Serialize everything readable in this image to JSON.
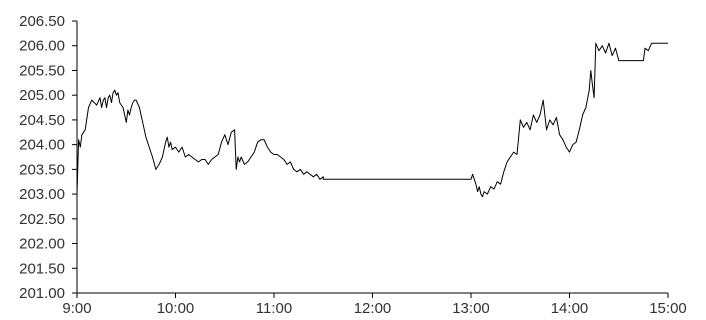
{
  "chart_data": {
    "type": "line",
    "title": "",
    "xlabel": "",
    "ylabel": "",
    "x_ticks": [
      "9:00",
      "10:00",
      "11:00",
      "12:00",
      "13:00",
      "14:00",
      "15:00"
    ],
    "y_ticks": [
      "201.00",
      "201.50",
      "202.00",
      "202.50",
      "203.00",
      "203.50",
      "204.00",
      "204.50",
      "205.00",
      "205.50",
      "206.00",
      "206.50"
    ],
    "xlim": [
      "9:00",
      "15:00"
    ],
    "ylim": [
      201.0,
      206.5
    ],
    "grid": false,
    "line_color": "#000000",
    "series": [
      {
        "x": [
          "9:00",
          "9:01",
          "9:02",
          "9:03",
          "9:05",
          "9:07",
          "9:09",
          "9:12",
          "9:14",
          "9:15",
          "9:16",
          "9:17",
          "9:18",
          "9:19",
          "9:20",
          "9:21",
          "9:22",
          "9:23",
          "9:24",
          "9:25",
          "9:26",
          "9:28",
          "9:30",
          "9:31",
          "9:32",
          "9:33",
          "9:34",
          "9:35",
          "9:36",
          "9:38",
          "9:40",
          "9:42",
          "9:44",
          "9:46",
          "9:48",
          "9:50",
          "9:52",
          "9:54",
          "9:55",
          "9:56",
          "9:57",
          "9:58",
          "10:00",
          "10:02",
          "10:04",
          "10:06",
          "10:08",
          "10:10",
          "10:12",
          "10:14",
          "10:16",
          "10:18",
          "10:20",
          "10:22",
          "10:24",
          "10:26",
          "10:28",
          "10:30",
          "10:32",
          "10:34",
          "10:36",
          "10:37",
          "10:38",
          "10:39",
          "10:40",
          "10:42",
          "10:44",
          "10:46",
          "10:48",
          "10:50",
          "10:52",
          "10:54",
          "10:56",
          "10:58",
          "11:00",
          "11:02",
          "11:04",
          "11:06",
          "11:08",
          "11:10",
          "11:12",
          "11:14",
          "11:16",
          "11:18",
          "11:20",
          "11:22",
          "11:24",
          "11:26",
          "11:28",
          "11:30",
          "11:30",
          "13:00",
          "13:01",
          "13:02",
          "13:03",
          "13:04",
          "13:05",
          "13:06",
          "13:07",
          "13:08",
          "13:10",
          "13:12",
          "13:14",
          "13:16",
          "13:18",
          "13:20",
          "13:22",
          "13:24",
          "13:26",
          "13:28",
          "13:30",
          "13:32",
          "13:34",
          "13:36",
          "13:38",
          "13:40",
          "13:42",
          "13:44",
          "13:46",
          "13:48",
          "13:50",
          "13:52",
          "13:54",
          "13:56",
          "13:58",
          "14:00",
          "14:02",
          "14:04",
          "14:06",
          "14:08",
          "14:10",
          "14:12",
          "14:13",
          "14:14",
          "14:15",
          "14:16",
          "14:18",
          "14:20",
          "14:22",
          "14:24",
          "14:26",
          "14:28",
          "14:30",
          "14:35",
          "14:40",
          "14:45",
          "14:46",
          "14:48",
          "14:50",
          "14:55",
          "15:00"
        ],
        "y": [
          203.0,
          204.1,
          203.95,
          204.2,
          204.3,
          204.75,
          204.9,
          204.8,
          204.95,
          204.75,
          204.9,
          204.95,
          204.75,
          204.95,
          205.0,
          204.85,
          205.05,
          205.1,
          205.0,
          205.05,
          204.85,
          204.75,
          204.45,
          204.7,
          204.6,
          204.75,
          204.85,
          204.9,
          204.9,
          204.75,
          204.45,
          204.15,
          203.95,
          203.75,
          203.5,
          203.6,
          203.75,
          204.05,
          204.15,
          203.95,
          204.05,
          203.9,
          203.95,
          203.85,
          203.95,
          203.75,
          203.8,
          203.75,
          203.7,
          203.65,
          203.7,
          203.7,
          203.6,
          203.7,
          203.75,
          203.8,
          204.05,
          204.2,
          204.0,
          204.25,
          204.3,
          203.5,
          203.75,
          203.65,
          203.75,
          203.6,
          203.65,
          203.75,
          203.85,
          204.05,
          204.1,
          204.1,
          203.95,
          203.85,
          203.8,
          203.8,
          203.75,
          203.7,
          203.6,
          203.65,
          203.5,
          203.45,
          203.5,
          203.4,
          203.45,
          203.4,
          203.35,
          203.4,
          203.3,
          203.35,
          203.3,
          203.3,
          203.4,
          203.3,
          203.2,
          203.05,
          203.15,
          203.0,
          202.95,
          203.05,
          203.0,
          203.15,
          203.1,
          203.25,
          203.2,
          203.45,
          203.65,
          203.75,
          203.85,
          203.8,
          204.5,
          204.35,
          204.45,
          204.3,
          204.6,
          204.45,
          204.6,
          204.9,
          204.3,
          204.5,
          204.4,
          204.55,
          204.2,
          204.1,
          203.95,
          203.85,
          204.0,
          204.05,
          204.3,
          204.6,
          204.75,
          205.1,
          205.5,
          205.2,
          204.95,
          206.05,
          205.9,
          206.0,
          205.85,
          206.05,
          205.8,
          205.95,
          205.7,
          205.7,
          205.7,
          205.7,
          205.95,
          205.9,
          206.05,
          206.05,
          206.05
        ]
      }
    ]
  }
}
